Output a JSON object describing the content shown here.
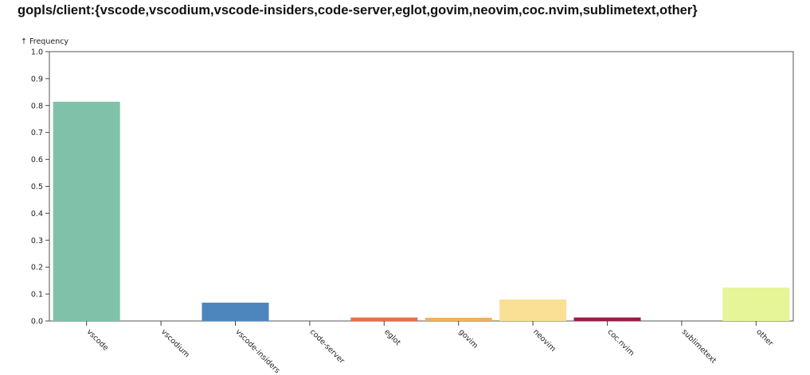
{
  "chart_data": {
    "type": "bar",
    "title": "gopls/client:{vscode,vscodium,vscode-insiders,code-server,eglot,govim,neovim,coc.nvim,sublimetext,other}",
    "ylabel": "↑ Frequency",
    "xlabel": "",
    "ylim": [
      0,
      1
    ],
    "yticks": [
      "0.0",
      "0.1",
      "0.2",
      "0.3",
      "0.4",
      "0.5",
      "0.6",
      "0.7",
      "0.8",
      "0.9",
      "1.0"
    ],
    "categories": [
      "vscode",
      "vscodium",
      "vscode-insiders",
      "code-server",
      "eglot",
      "govim",
      "neovim",
      "coc.nvim",
      "sublimetext",
      "other"
    ],
    "values": [
      0.814,
      0,
      0.068,
      0,
      0.013,
      0.012,
      0.08,
      0.013,
      0,
      0.124
    ],
    "colors": [
      "#80c2a9",
      "#5e4fa2",
      "#4c86bd",
      "#3288bd",
      "#e8704a",
      "#f4b060",
      "#f9e094",
      "#9a1c45",
      "#d53e4f",
      "#e6f598"
    ],
    "grid": false
  }
}
